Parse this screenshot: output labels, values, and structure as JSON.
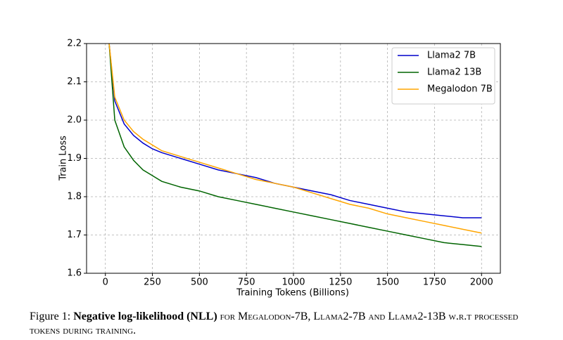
{
  "chart_data": {
    "type": "line",
    "xlabel": "Training Tokens (Billions)",
    "ylabel": "Train Loss",
    "x": [
      20,
      50,
      100,
      150,
      200,
      250,
      300,
      400,
      500,
      600,
      700,
      800,
      900,
      1000,
      1100,
      1200,
      1300,
      1400,
      1500,
      1600,
      1700,
      1800,
      1900,
      2000
    ],
    "series": [
      {
        "name": "Llama2 7B",
        "color": "#0000cc",
        "values": [
          2.2,
          2.05,
          1.99,
          1.96,
          1.94,
          1.925,
          1.915,
          1.9,
          1.885,
          1.87,
          1.86,
          1.85,
          1.835,
          1.825,
          1.815,
          1.805,
          1.79,
          1.78,
          1.77,
          1.76,
          1.755,
          1.75,
          1.745,
          1.745
        ]
      },
      {
        "name": "Llama2 13B",
        "color": "#006400",
        "values": [
          2.2,
          2.0,
          1.93,
          1.895,
          1.87,
          1.855,
          1.84,
          1.825,
          1.815,
          1.8,
          1.79,
          1.78,
          1.77,
          1.76,
          1.75,
          1.74,
          1.73,
          1.72,
          1.71,
          1.7,
          1.69,
          1.68,
          1.675,
          1.67
        ]
      },
      {
        "name": "Megalodon 7B",
        "color": "#ffa500",
        "values": [
          2.2,
          2.06,
          2.0,
          1.97,
          1.95,
          1.935,
          1.92,
          1.905,
          1.89,
          1.875,
          1.86,
          1.845,
          1.835,
          1.825,
          1.81,
          1.795,
          1.78,
          1.77,
          1.755,
          1.745,
          1.735,
          1.725,
          1.715,
          1.705
        ]
      }
    ],
    "xlim": [
      -100,
      2100
    ],
    "ylim": [
      1.6,
      2.2
    ],
    "xticks": [
      0,
      250,
      500,
      750,
      1000,
      1250,
      1500,
      1750,
      2000
    ],
    "yticks": [
      1.6,
      1.7,
      1.8,
      1.9,
      {
        "value": 2,
        "label": "2.0"
      },
      2.1,
      2.2
    ],
    "grid": true,
    "legend": "upper right"
  },
  "caption": {
    "label": "Figure 1:",
    "bold": "Negative log-likelihood (NLL)",
    "text": "for Megalodon-7B, Llama2-7B and Llama2-13B w.r.t processed tokens during training."
  }
}
